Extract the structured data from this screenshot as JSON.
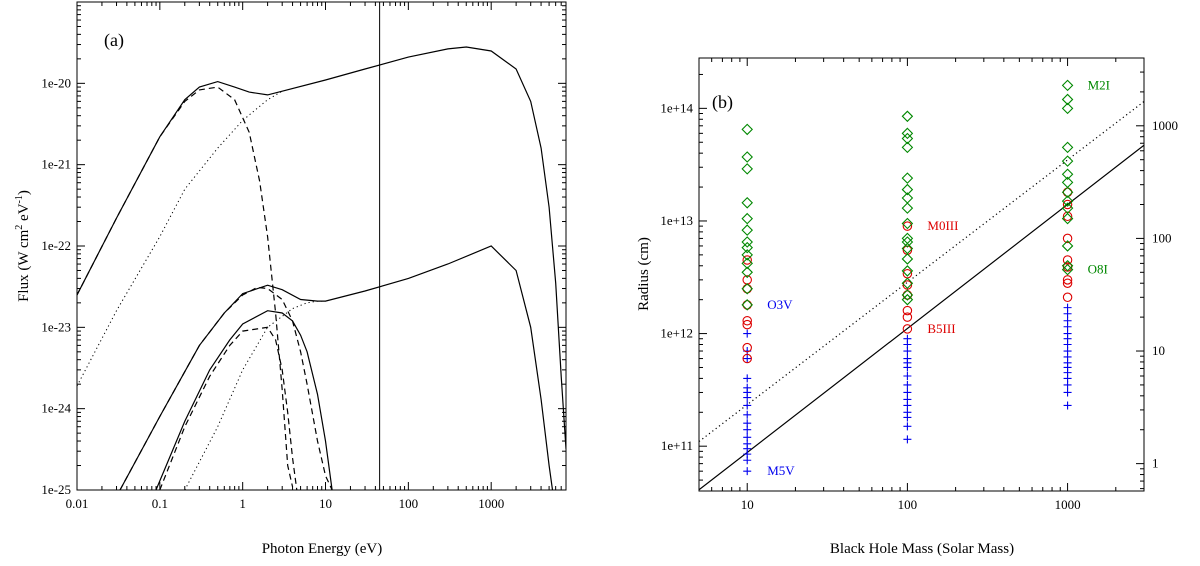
{
  "chart_data": [
    {
      "panel": "(a)",
      "type": "line",
      "xlabel": "Photon Energy  (eV)",
      "ylabel_main": "Flux  (W cm",
      "ylabel_sup1": "2",
      "ylabel_mid": " eV",
      "ylabel_sup2": "-1",
      "ylabel_end": ")",
      "x_scale": "log",
      "y_scale": "log",
      "xlim": [
        0.01,
        8000
      ],
      "ylim": [
        1e-25,
        1e-19
      ],
      "x_ticks": [
        {
          "value": 0.01,
          "label": "0.01"
        },
        {
          "value": 0.1,
          "label": "0.1"
        },
        {
          "value": 1,
          "label": "1"
        },
        {
          "value": 10,
          "label": "10"
        },
        {
          "value": 100,
          "label": "100"
        },
        {
          "value": 1000,
          "label": "1000"
        }
      ],
      "y_ticks": [
        {
          "value": 1e-25,
          "label": "1e-25"
        },
        {
          "value": 1e-24,
          "label": "1e-24"
        },
        {
          "value": 1e-23,
          "label": "1e-23"
        },
        {
          "value": 1e-22,
          "label": "1e-22"
        },
        {
          "value": 1e-21,
          "label": "1e-21"
        },
        {
          "value": 1e-20,
          "label": "1e-20"
        }
      ],
      "vertical_line_x": 45,
      "series": [
        {
          "style": "solid",
          "x": [
            0.01,
            0.03,
            0.1,
            0.2,
            0.3,
            0.5,
            0.8,
            1.2,
            2,
            3,
            10,
            30,
            100,
            300,
            500,
            1000,
            2000,
            3000,
            4000,
            5000,
            6000,
            7000,
            8000
          ],
          "y": [
            2.5e-23,
            2.2e-22,
            2.2e-21,
            6.3e-21,
            9e-21,
            1.05e-20,
            9e-21,
            7.8e-21,
            7.2e-21,
            8e-21,
            1.1e-20,
            1.5e-20,
            2.1e-20,
            2.65e-20,
            2.8e-20,
            2.5e-20,
            1.5e-20,
            6e-21,
            1.6e-21,
            3e-22,
            3.5e-23,
            2.5e-24,
            3.2e-25
          ]
        },
        {
          "style": "dashed",
          "x": [
            0.01,
            0.03,
            0.1,
            0.2,
            0.3,
            0.5,
            0.8,
            1.2,
            1.6,
            2,
            2.5,
            3,
            3.5,
            4
          ],
          "y": [
            2.5e-23,
            2.2e-22,
            2.2e-21,
            6e-21,
            8.3e-21,
            9e-21,
            6.3e-21,
            2.5e-21,
            6.3e-22,
            1.3e-22,
            1.5e-23,
            1.7e-24,
            2e-25,
            1.1e-25
          ]
        },
        {
          "style": "dotted",
          "x": [
            0.01,
            0.03,
            0.1,
            0.2,
            0.5,
            1,
            2,
            3
          ],
          "y": [
            1.9e-24,
            1.6e-23,
            1.3e-22,
            5e-22,
            1.6e-21,
            3.5e-21,
            6.3e-21,
            8e-21
          ]
        },
        {
          "style": "solid",
          "x": [
            0.033,
            0.1,
            0.3,
            0.6,
            1,
            2,
            3,
            5,
            8,
            10,
            30,
            100,
            300,
            1000,
            2000,
            3000,
            4000,
            5000,
            5500
          ],
          "y": [
            1e-25,
            8e-25,
            6e-24,
            1.5e-23,
            2.6e-23,
            3.3e-23,
            2.9e-23,
            2.2e-23,
            2.1e-23,
            2.1e-23,
            2.8e-23,
            4e-23,
            6e-23,
            1e-22,
            5e-23,
            1e-23,
            1.3e-24,
            2e-25,
            1e-25
          ]
        },
        {
          "style": "dashed",
          "x": [
            0.033,
            0.1,
            0.3,
            0.6,
            1,
            1.5,
            2,
            3,
            4,
            5,
            6,
            8,
            10,
            12
          ],
          "y": [
            1e-25,
            8e-25,
            6e-24,
            1.5e-23,
            2.5e-23,
            3.1e-23,
            3e-23,
            2.2e-23,
            1.2e-23,
            5e-24,
            2e-24,
            4e-25,
            1.5e-25,
            1e-25
          ]
        },
        {
          "style": "solid",
          "x": [
            0.09,
            0.2,
            0.4,
            0.7,
            1,
            2,
            3,
            4,
            5,
            6,
            8,
            10,
            12
          ],
          "y": [
            1e-25,
            7e-25,
            3e-24,
            7e-24,
            1.1e-23,
            1.6e-23,
            1.5e-23,
            1.2e-23,
            8e-24,
            5e-24,
            1.5e-24,
            4e-25,
            1e-25
          ]
        },
        {
          "style": "dashed",
          "x": [
            0.1,
            0.2,
            0.4,
            0.7,
            1,
            2,
            2.5,
            3,
            3.5,
            4,
            4.5
          ],
          "y": [
            1e-25,
            6e-25,
            2.5e-24,
            6e-24,
            9e-24,
            1e-23,
            7e-24,
            3e-24,
            9e-25,
            2.5e-25,
            1e-25
          ]
        },
        {
          "style": "dotted",
          "x": [
            0.2,
            0.5,
            1,
            2,
            4,
            6,
            8,
            10
          ],
          "y": [
            1e-25,
            6e-25,
            3e-24,
            1e-23,
            1.7e-23,
            2e-23,
            2.1e-23,
            2.1e-23
          ]
        }
      ]
    },
    {
      "panel": "(b)",
      "type": "scatter",
      "xlabel": "Black Hole Mass  (Solar Mass)",
      "ylabel": "Radius (cm)",
      "x_scale": "log",
      "y_scale": "log",
      "xlim": [
        5,
        3000
      ],
      "ylim": [
        40000000000.0,
        280000000000000.0
      ],
      "x_ticks": [
        {
          "value": 10,
          "label": "10"
        },
        {
          "value": 100,
          "label": "100"
        },
        {
          "value": 1000,
          "label": "1000"
        }
      ],
      "y_ticks": [
        {
          "value": 100000000000.0,
          "label": "1e+11"
        },
        {
          "value": 1000000000000.0,
          "label": "1e+12"
        },
        {
          "value": 10000000000000.0,
          "label": "1e+13"
        },
        {
          "value": 100000000000000.0,
          "label": "1e+14"
        }
      ],
      "y2_ticks": [
        {
          "value": 1,
          "label": "1"
        },
        {
          "value": 10,
          "label": "10"
        },
        {
          "value": 100,
          "label": "100"
        },
        {
          "value": 1000,
          "label": "1000"
        }
      ],
      "y2_note": "right axis: radius divided by 7e10 cm (solar radii)",
      "y2_scale_cm": 70000000000.0,
      "lines": [
        {
          "style": "solid",
          "x": [
            5,
            3000
          ],
          "y": [
            41000000000.0,
            47000000000000.0
          ]
        },
        {
          "style": "dotted",
          "x": [
            5,
            3000
          ],
          "y": [
            110000000000.0,
            115000000000000.0
          ]
        }
      ],
      "colors": {
        "plus": "#0000ee",
        "circle": "#dd0000",
        "diamond": "#008800"
      },
      "series": [
        {
          "marker": "plus",
          "x": 10,
          "y": [
            60000000000.0,
            75000000000.0,
            85000000000.0,
            95000000000.0,
            105000000000.0,
            120000000000.0,
            140000000000.0,
            160000000000.0,
            190000000000.0,
            230000000000.0,
            270000000000.0,
            300000000000.0,
            330000000000.0,
            400000000000.0,
            600000000000.0,
            700000000000.0,
            1000000000000.0
          ]
        },
        {
          "marker": "plus",
          "x": 100,
          "y": [
            115000000000.0,
            150000000000.0,
            180000000000.0,
            200000000000.0,
            230000000000.0,
            260000000000.0,
            300000000000.0,
            350000000000.0,
            420000000000.0,
            500000000000.0,
            550000000000.0,
            600000000000.0,
            700000000000.0,
            800000000000.0,
            900000000000.0
          ]
        },
        {
          "marker": "plus",
          "x": 1000,
          "y": [
            230000000000.0,
            300000000000.0,
            350000000000.0,
            400000000000.0,
            450000000000.0,
            500000000000.0,
            550000000000.0,
            620000000000.0,
            700000000000.0,
            800000000000.0,
            900000000000.0,
            1000000000000.0,
            1150000000000.0,
            1300000000000.0,
            1500000000000.0,
            1700000000000.0
          ]
        },
        {
          "marker": "circle",
          "x": 10,
          "y": [
            600000000000.0,
            750000000000.0,
            1200000000000.0,
            1300000000000.0,
            1800000000000.0,
            2500000000000.0,
            3000000000000.0,
            4500000000000.0
          ]
        },
        {
          "marker": "circle",
          "x": 100,
          "y": [
            1100000000000.0,
            1400000000000.0,
            1600000000000.0,
            2200000000000.0,
            2700000000000.0,
            3400000000000.0,
            5500000000000.0,
            9000000000000.0
          ]
        },
        {
          "marker": "circle",
          "x": 1000,
          "y": [
            2100000000000.0,
            2800000000000.0,
            3000000000000.0,
            3900000000000.0,
            4500000000000.0,
            7000000000000.0,
            11000000000000.0,
            14000000000000.0,
            18000000000000.0
          ]
        },
        {
          "marker": "diamond",
          "x": 10,
          "y": [
            1800000000000.0,
            2500000000000.0,
            3500000000000.0,
            4200000000000.0,
            5000000000000.0,
            5800000000000.0,
            6500000000000.0,
            8300000000000.0,
            10500000000000.0,
            14500000000000.0,
            29000000000000.0,
            37000000000000.0,
            65000000000000.0
          ]
        },
        {
          "marker": "diamond",
          "x": 100,
          "y": [
            2000000000000.0,
            2200000000000.0,
            2800000000000.0,
            3600000000000.0,
            4600000000000.0,
            5700000000000.0,
            6500000000000.0,
            7000000000000.0,
            9500000000000.0,
            13000000000000.0,
            16000000000000.0,
            19000000000000.0,
            24000000000000.0,
            45000000000000.0,
            54000000000000.0,
            60000000000000.0,
            85000000000000.0
          ]
        },
        {
          "marker": "diamond",
          "x": 1000,
          "y": [
            3700000000000.0,
            4000000000000.0,
            6000000000000.0,
            10500000000000.0,
            13000000000000.0,
            15000000000000.0,
            18000000000000.0,
            22000000000000.0,
            26000000000000.0,
            34000000000000.0,
            45000000000000.0,
            100000000000000.0,
            120000000000000.0,
            160000000000000.0
          ]
        }
      ],
      "annotations": [
        {
          "text": "M2I",
          "x": 1000,
          "y": 160000000000000.0,
          "color": "#008800"
        },
        {
          "text": "M0III",
          "x": 100,
          "y": 9000000000000.0,
          "color": "#dd0000"
        },
        {
          "text": "O8I",
          "x": 1000,
          "y": 3700000000000.0,
          "color": "#008800"
        },
        {
          "text": "O3V",
          "x": 10,
          "y": 1800000000000.0,
          "color": "#0000ee"
        },
        {
          "text": "B5III",
          "x": 100,
          "y": 1100000000000.0,
          "color": "#dd0000"
        },
        {
          "text": "M5V",
          "x": 10,
          "y": 60000000000.0,
          "color": "#0000ee"
        }
      ]
    }
  ]
}
